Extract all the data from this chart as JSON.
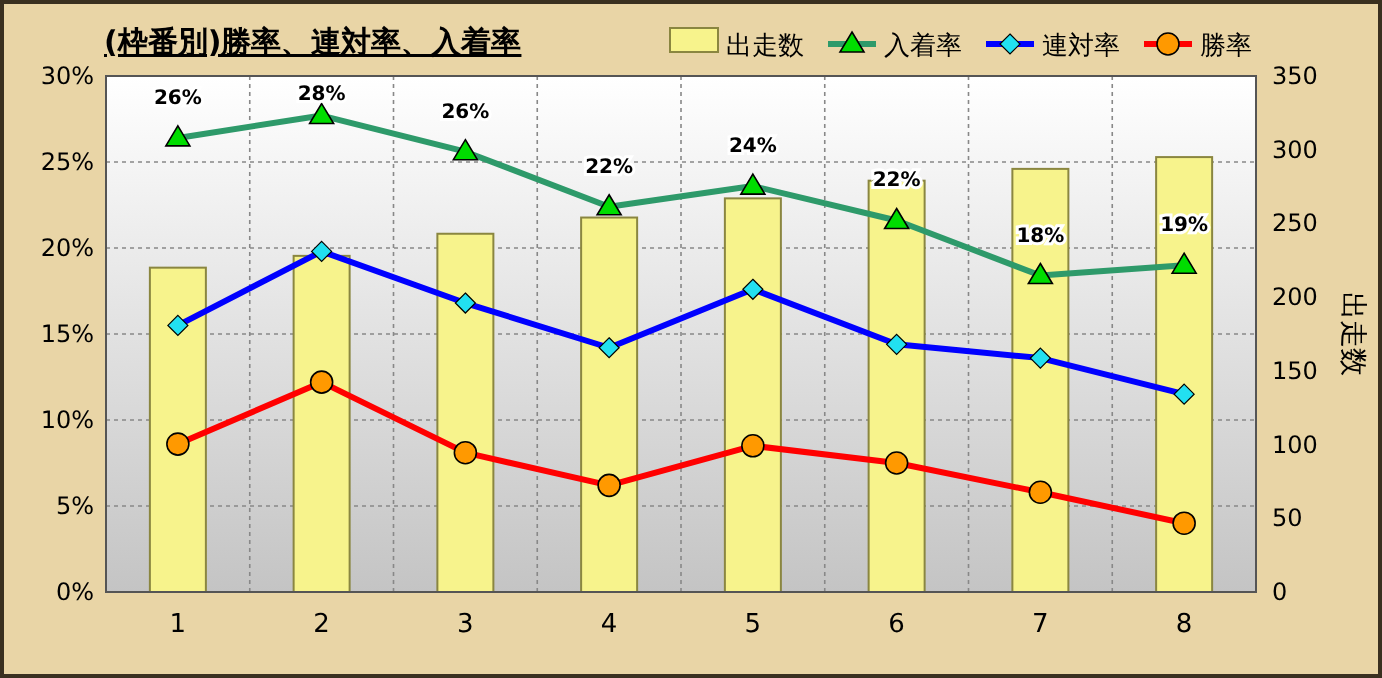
{
  "chart_data": {
    "type": "line",
    "title": "(枠番別)勝率、連対率、入着率",
    "y2label": "出走数",
    "categories": [
      "1",
      "2",
      "3",
      "4",
      "5",
      "6",
      "7",
      "8"
    ],
    "series": [
      {
        "name": "出走数",
        "type": "bar",
        "axis": "y2",
        "color": "#f7f38c",
        "values": [
          220,
          228,
          243,
          254,
          267,
          279,
          287,
          295
        ]
      },
      {
        "name": "入着率",
        "color": "#2e9a6a",
        "marker": "triangle",
        "values": [
          26.4,
          27.7,
          25.6,
          22.4,
          23.6,
          21.6,
          18.4,
          19.0
        ],
        "value_labels": [
          "26%",
          "28%",
          "26%",
          "22%",
          "24%",
          "22%",
          "18%",
          "19%"
        ]
      },
      {
        "name": "連対率",
        "color": "#0000ff",
        "marker": "diamond",
        "values": [
          15.5,
          19.8,
          16.8,
          14.2,
          17.6,
          14.4,
          13.6,
          11.5
        ]
      },
      {
        "name": "勝率",
        "color": "#ff0000",
        "marker": "circle",
        "values": [
          8.6,
          12.2,
          8.1,
          6.2,
          8.5,
          7.5,
          5.8,
          4.0
        ]
      }
    ],
    "ylim": [
      0,
      30
    ],
    "yticks": [
      {
        "value": 0,
        "label": "0%"
      },
      {
        "value": 5,
        "label": "5%"
      },
      {
        "value": 10,
        "label": "10%"
      },
      {
        "value": 15,
        "label": "15%"
      },
      {
        "value": 20,
        "label": "20%"
      },
      {
        "value": 25,
        "label": "25%"
      },
      {
        "value": 30,
        "label": "30%"
      }
    ],
    "y2lim": [
      0,
      350
    ],
    "y2ticks": [
      0,
      50,
      100,
      150,
      200,
      250,
      300,
      350
    ],
    "grid": true,
    "legend": "top right",
    "line_style": "solid"
  }
}
